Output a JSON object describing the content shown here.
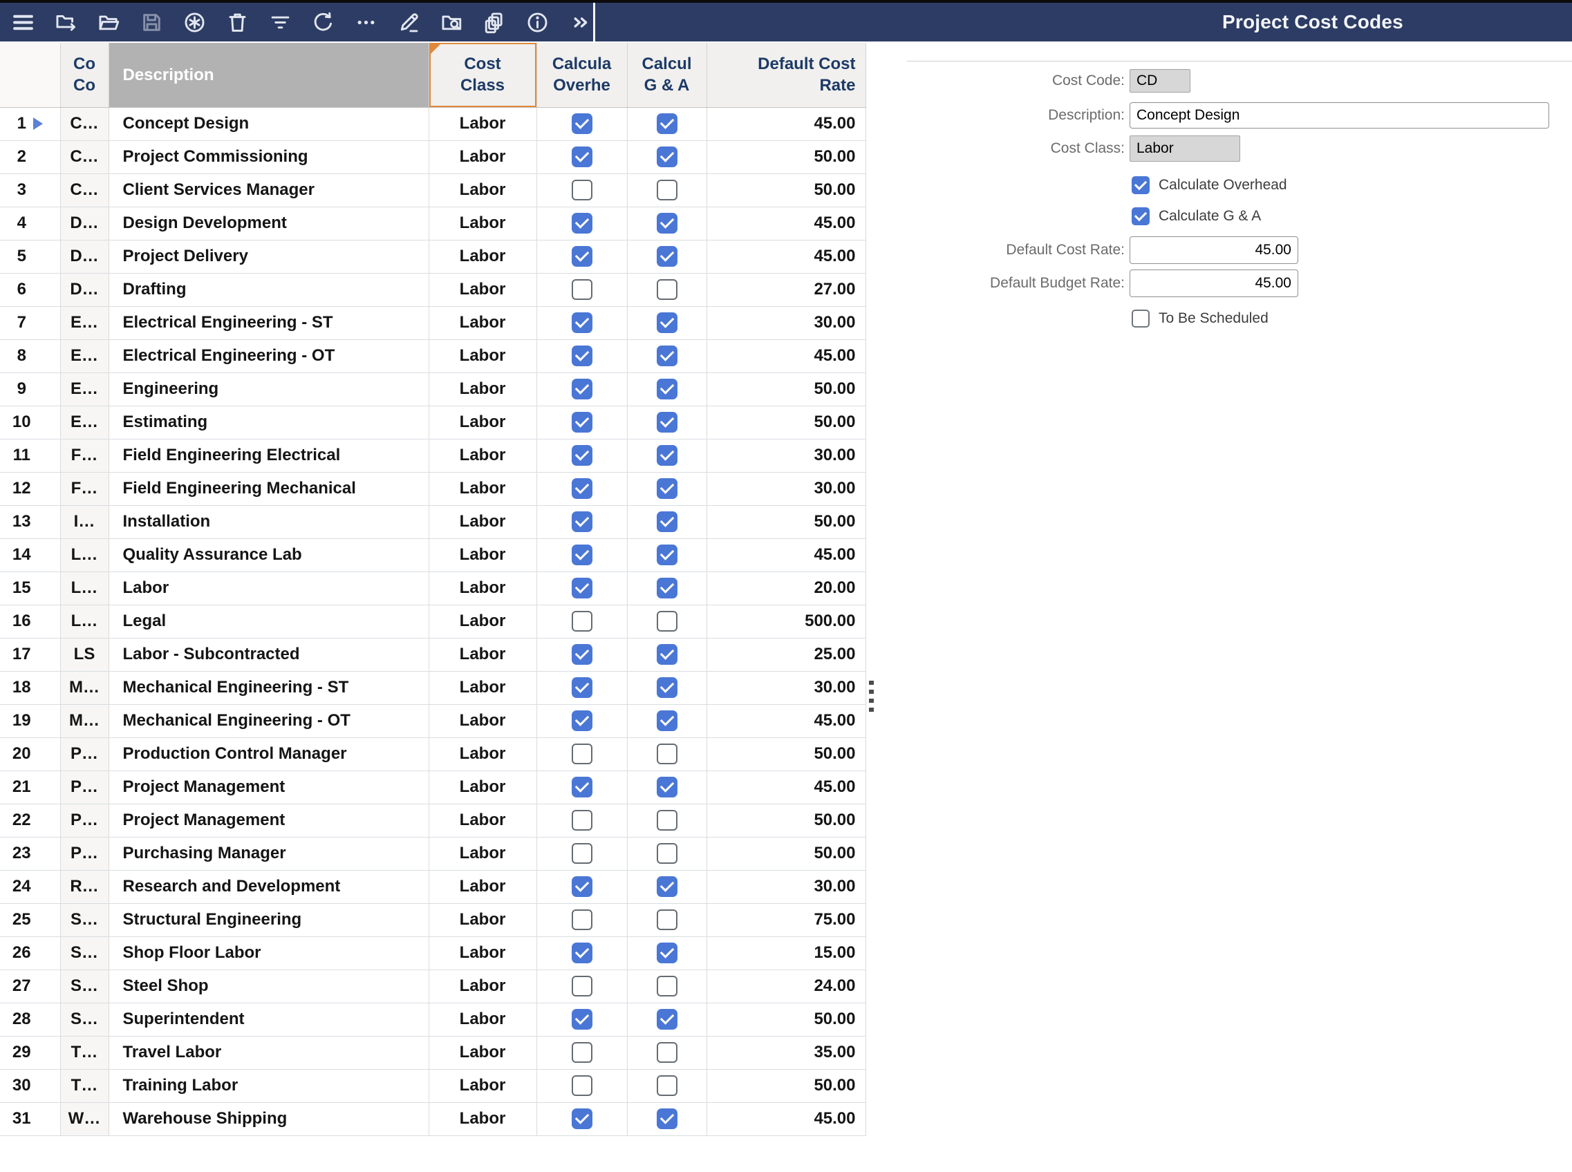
{
  "title_bar": {
    "title": "Project Cost Codes"
  },
  "toolbar": {
    "icons": [
      {
        "name": "menu-icon",
        "disabled": false
      },
      {
        "name": "folder-arrow-icon",
        "disabled": false
      },
      {
        "name": "folder-open-icon",
        "disabled": false
      },
      {
        "name": "save-icon",
        "disabled": true
      },
      {
        "name": "asterisk-circle-icon",
        "disabled": false
      },
      {
        "name": "trash-icon",
        "disabled": false
      },
      {
        "name": "filter-icon",
        "disabled": false
      },
      {
        "name": "refresh-icon",
        "disabled": false
      },
      {
        "name": "ellipsis-icon",
        "disabled": false
      },
      {
        "name": "edit-icon",
        "disabled": false
      },
      {
        "name": "folder-search-icon",
        "disabled": false
      },
      {
        "name": "copy-pages-icon",
        "disabled": false
      },
      {
        "name": "info-icon",
        "disabled": false
      },
      {
        "name": "chevrons-right-icon",
        "disabled": false
      }
    ]
  },
  "table": {
    "headers": {
      "code_line1": "Co",
      "code_line2": "Co",
      "description": "Description",
      "cost_class_line1": "Cost",
      "cost_class_line2": "Class",
      "overhead_line1": "Calcula",
      "overhead_line2": "Overhe",
      "ga_line1": "Calcul",
      "ga_line2": "G & A",
      "rate_line1": "Default Cost",
      "rate_line2": "Rate"
    },
    "selected_row": 1,
    "rows": [
      {
        "num": 1,
        "code": "C…",
        "description": "Concept Design",
        "cost_class": "Labor",
        "calc_overhead": true,
        "calc_ga": true,
        "rate": "45.00"
      },
      {
        "num": 2,
        "code": "C…",
        "description": "Project Commissioning",
        "cost_class": "Labor",
        "calc_overhead": true,
        "calc_ga": true,
        "rate": "50.00"
      },
      {
        "num": 3,
        "code": "C…",
        "description": "Client Services Manager",
        "cost_class": "Labor",
        "calc_overhead": false,
        "calc_ga": false,
        "rate": "50.00"
      },
      {
        "num": 4,
        "code": "D…",
        "description": "Design Development",
        "cost_class": "Labor",
        "calc_overhead": true,
        "calc_ga": true,
        "rate": "45.00"
      },
      {
        "num": 5,
        "code": "D…",
        "description": "Project Delivery",
        "cost_class": "Labor",
        "calc_overhead": true,
        "calc_ga": true,
        "rate": "45.00"
      },
      {
        "num": 6,
        "code": "D…",
        "description": "Drafting",
        "cost_class": "Labor",
        "calc_overhead": false,
        "calc_ga": false,
        "rate": "27.00"
      },
      {
        "num": 7,
        "code": "E…",
        "description": "Electrical Engineering - ST",
        "cost_class": "Labor",
        "calc_overhead": true,
        "calc_ga": true,
        "rate": "30.00"
      },
      {
        "num": 8,
        "code": "E…",
        "description": "Electrical Engineering - OT",
        "cost_class": "Labor",
        "calc_overhead": true,
        "calc_ga": true,
        "rate": "45.00"
      },
      {
        "num": 9,
        "code": "E…",
        "description": "Engineering",
        "cost_class": "Labor",
        "calc_overhead": true,
        "calc_ga": true,
        "rate": "50.00"
      },
      {
        "num": 10,
        "code": "E…",
        "description": "Estimating",
        "cost_class": "Labor",
        "calc_overhead": true,
        "calc_ga": true,
        "rate": "50.00"
      },
      {
        "num": 11,
        "code": "F…",
        "description": "Field Engineering Electrical",
        "cost_class": "Labor",
        "calc_overhead": true,
        "calc_ga": true,
        "rate": "30.00"
      },
      {
        "num": 12,
        "code": "F…",
        "description": "Field Engineering Mechanical",
        "cost_class": "Labor",
        "calc_overhead": true,
        "calc_ga": true,
        "rate": "30.00"
      },
      {
        "num": 13,
        "code": "I…",
        "description": "Installation",
        "cost_class": "Labor",
        "calc_overhead": true,
        "calc_ga": true,
        "rate": "50.00"
      },
      {
        "num": 14,
        "code": "L…",
        "description": "Quality Assurance Lab",
        "cost_class": "Labor",
        "calc_overhead": true,
        "calc_ga": true,
        "rate": "45.00"
      },
      {
        "num": 15,
        "code": "L…",
        "description": "Labor",
        "cost_class": "Labor",
        "calc_overhead": true,
        "calc_ga": true,
        "rate": "20.00"
      },
      {
        "num": 16,
        "code": "L…",
        "description": "Legal",
        "cost_class": "Labor",
        "calc_overhead": false,
        "calc_ga": false,
        "rate": "500.00"
      },
      {
        "num": 17,
        "code": "LS",
        "description": "Labor - Subcontracted",
        "cost_class": "Labor",
        "calc_overhead": true,
        "calc_ga": true,
        "rate": "25.00"
      },
      {
        "num": 18,
        "code": "M…",
        "description": "Mechanical Engineering - ST",
        "cost_class": "Labor",
        "calc_overhead": true,
        "calc_ga": true,
        "rate": "30.00"
      },
      {
        "num": 19,
        "code": "M…",
        "description": "Mechanical Engineering - OT",
        "cost_class": "Labor",
        "calc_overhead": true,
        "calc_ga": true,
        "rate": "45.00"
      },
      {
        "num": 20,
        "code": "P…",
        "description": "Production Control Manager",
        "cost_class": "Labor",
        "calc_overhead": false,
        "calc_ga": false,
        "rate": "50.00"
      },
      {
        "num": 21,
        "code": "P…",
        "description": "Project Management",
        "cost_class": "Labor",
        "calc_overhead": true,
        "calc_ga": true,
        "rate": "45.00"
      },
      {
        "num": 22,
        "code": "P…",
        "description": "Project Management",
        "cost_class": "Labor",
        "calc_overhead": false,
        "calc_ga": false,
        "rate": "50.00"
      },
      {
        "num": 23,
        "code": "P…",
        "description": "Purchasing Manager",
        "cost_class": "Labor",
        "calc_overhead": false,
        "calc_ga": false,
        "rate": "50.00"
      },
      {
        "num": 24,
        "code": "R…",
        "description": "Research and Development",
        "cost_class": "Labor",
        "calc_overhead": true,
        "calc_ga": true,
        "rate": "30.00"
      },
      {
        "num": 25,
        "code": "S…",
        "description": "Structural Engineering",
        "cost_class": "Labor",
        "calc_overhead": false,
        "calc_ga": false,
        "rate": "75.00"
      },
      {
        "num": 26,
        "code": "S…",
        "description": "Shop Floor Labor",
        "cost_class": "Labor",
        "calc_overhead": true,
        "calc_ga": true,
        "rate": "15.00"
      },
      {
        "num": 27,
        "code": "S…",
        "description": "Steel Shop",
        "cost_class": "Labor",
        "calc_overhead": false,
        "calc_ga": false,
        "rate": "24.00"
      },
      {
        "num": 28,
        "code": "S…",
        "description": "Superintendent",
        "cost_class": "Labor",
        "calc_overhead": true,
        "calc_ga": true,
        "rate": "50.00"
      },
      {
        "num": 29,
        "code": "T…",
        "description": "Travel Labor",
        "cost_class": "Labor",
        "calc_overhead": false,
        "calc_ga": false,
        "rate": "35.00"
      },
      {
        "num": 30,
        "code": "T…",
        "description": "Training Labor",
        "cost_class": "Labor",
        "calc_overhead": false,
        "calc_ga": false,
        "rate": "50.00"
      },
      {
        "num": 31,
        "code": "W…",
        "description": "Warehouse Shipping",
        "cost_class": "Labor",
        "calc_overhead": true,
        "calc_ga": true,
        "rate": "45.00"
      }
    ]
  },
  "detail": {
    "cost_code_label": "Cost Code:",
    "cost_code": "CD",
    "description_label": "Description:",
    "description": "Concept Design",
    "cost_class_label": "Cost Class:",
    "cost_class": "Labor",
    "calc_overhead_label": "Calculate Overhead",
    "calc_overhead": true,
    "calc_ga_label": "Calculate G & A",
    "calc_ga": true,
    "default_cost_rate_label": "Default Cost Rate:",
    "default_cost_rate": "45.00",
    "default_budget_rate_label": "Default Budget Rate:",
    "default_budget_rate": "45.00",
    "to_be_scheduled_label": "To Be Scheduled",
    "to_be_scheduled": false
  },
  "colors": {
    "topbar": "#2d3c64",
    "accent_blue": "#4a77d6",
    "header_text": "#1d3a66",
    "selected_column_header_bg": "#b2b2b2",
    "highlight_orange": "#e0893c",
    "row_marker_blue": "#5b80d8"
  }
}
